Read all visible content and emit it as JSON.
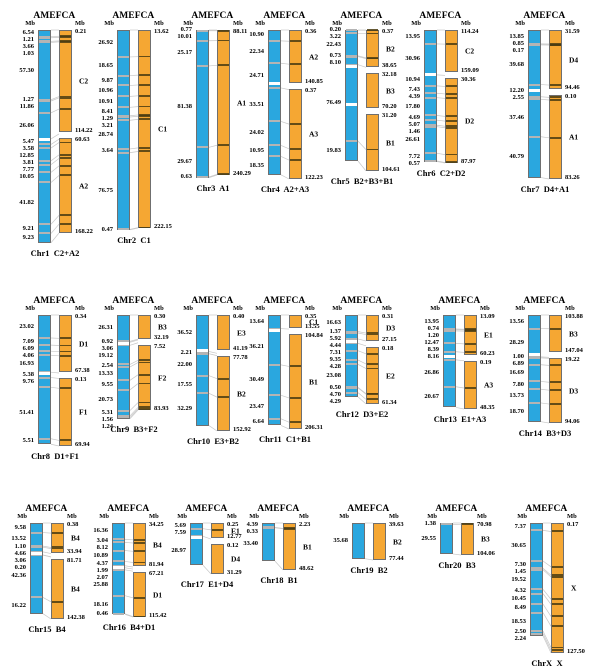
{
  "figure": {
    "unit_label": "Mb",
    "species_left": "AME",
    "species_right": "FCA",
    "colors": {
      "ame_bar": "#2AA7DF",
      "fca_bar": "#F5A733"
    }
  },
  "chromosomes": [
    {
      "name": "Chr1",
      "composition": "C2+A2",
      "ame_block_sizes_mb": [
        "6.54",
        "1.21",
        "3.66",
        "1.03",
        "57.30",
        "1.27",
        "11.86",
        "26.06",
        "5.47",
        "3.58",
        "12.85",
        "3.81",
        "7.77",
        "10.05",
        "41.82",
        "9.21",
        "9.23"
      ],
      "fca_segments": [
        {
          "name": "C2",
          "start": "0.21",
          "end": "114.22"
        },
        {
          "name": "A2",
          "start": "60.63",
          "end": "168.22"
        }
      ]
    },
    {
      "name": "Chr2",
      "composition": "C1",
      "ame_block_sizes_mb": [
        "26.92",
        "18.65",
        "9.87",
        "10.96",
        "10.91",
        "8.41",
        "1.29",
        "3.21",
        "28.74",
        "3.64",
        "76.75",
        "0.47"
      ],
      "fca_segments": [
        {
          "name": "C1",
          "start": "13.62",
          "end": "222.15"
        }
      ]
    },
    {
      "name": "Chr3",
      "composition": "A1",
      "ame_block_sizes_mb": [
        "0.77",
        "10.01",
        "25.17",
        "81.38",
        "29.67",
        "0.63"
      ],
      "fca_segments": [
        {
          "name": "A1",
          "start": "88.11",
          "end": "240.29"
        }
      ]
    },
    {
      "name": "Chr4",
      "composition": "A2+A3",
      "ame_block_sizes_mb": [
        "10.90",
        "22.34",
        "24.71",
        "33.51",
        "24.02",
        "10.95",
        "18.35"
      ],
      "fca_segments": [
        {
          "name": "A2",
          "start": "0.36",
          "end": "140.85"
        },
        {
          "name": "A3",
          "start": "0.37",
          "end": "122.23"
        }
      ]
    },
    {
      "name": "Chr5",
      "composition": "B2+B3+B1",
      "ame_block_sizes_mb": [
        "0.20",
        "3.22",
        "22.43",
        "0.73",
        "8.10",
        "76.49",
        "19.83"
      ],
      "fca_segments": [
        {
          "name": "B2",
          "start": "0.37",
          "end": "38.65"
        },
        {
          "name": "B3",
          "start": "32.18",
          "end": "70.20"
        },
        {
          "name": "B1",
          "start": "31.20",
          "end": "104.61"
        }
      ]
    },
    {
      "name": "Chr6",
      "composition": "C2+D2",
      "ame_block_sizes_mb": [
        "13.95",
        "30.96",
        "10.94",
        "7.43",
        "4.39",
        "17.80",
        "4.69",
        "5.07",
        "1.46",
        "26.61",
        "7.72",
        "0.57"
      ],
      "fca_segments": [
        {
          "name": "C2",
          "start": "114.24",
          "end": "159.09"
        },
        {
          "name": "D2",
          "start": "30.36",
          "end": "87.97"
        }
      ]
    },
    {
      "name": "Chr7",
      "composition": "D4+A1",
      "ame_block_sizes_mb": [
        "13.85",
        "0.85",
        "0.17",
        "39.68",
        "12.20",
        "2.55",
        "37.46",
        "40.79"
      ],
      "fca_segments": [
        {
          "name": "D4",
          "start": "31.59",
          "end": "94.46"
        },
        {
          "name": "A1",
          "start": "0.10",
          "end": "83.26"
        }
      ]
    },
    {
      "name": "Chr8",
      "composition": "D1+F1",
      "ame_block_sizes_mb": [
        "23.02",
        "7.09",
        "6.09",
        "4.06",
        "16.93",
        "5.38",
        "9.76",
        "51.41",
        "5.51"
      ],
      "fca_segments": [
        {
          "name": "D1",
          "start": "0.34",
          "end": "67.38"
        },
        {
          "name": "F1",
          "start": "0.13",
          "end": "69.94"
        }
      ]
    },
    {
      "name": "Chr9",
      "composition": "B3+F2",
      "ame_block_sizes_mb": [
        "26.31",
        "0.92",
        "3.06",
        "19.12",
        "2.54",
        "13.33",
        "9.55",
        "20.73",
        "5.31",
        "1.56",
        "1.24"
      ],
      "fca_segments": [
        {
          "name": "B3",
          "start": "0.30",
          "end": "32.19"
        },
        {
          "name": "F2",
          "start": "7.52",
          "end": "83.93"
        }
      ]
    },
    {
      "name": "Chr10",
      "composition": "E3+B2",
      "ame_block_sizes_mb": [
        "36.52",
        "2.21",
        "22.00",
        "17.55",
        "32.29"
      ],
      "fca_segments": [
        {
          "name": "E3",
          "start": "0.40",
          "end": "41.19"
        },
        {
          "name": "B2",
          "start": "77.78",
          "end": "152.92"
        }
      ]
    },
    {
      "name": "Chr11",
      "composition": "C1+B1",
      "ame_block_sizes_mb": [
        "13.64",
        "36.21",
        "30.49",
        "23.47",
        "6.64"
      ],
      "fca_segments": [
        {
          "name": "C1",
          "start": "0.35",
          "end": "13.55"
        },
        {
          "name": "B1",
          "start": "104.84",
          "end": "206.31"
        }
      ]
    },
    {
      "name": "Chr12",
      "composition": "D3+E2",
      "ame_block_sizes_mb": [
        "16.63",
        "1.37",
        "5.92",
        "4.44",
        "7.31",
        "9.35",
        "4.28",
        "23.08",
        "0.50",
        "4.70",
        "4.29"
      ],
      "fca_segments": [
        {
          "name": "D3",
          "start": "0.31",
          "end": "27.15"
        },
        {
          "name": "E2",
          "start": "0.18",
          "end": "61.34"
        }
      ]
    },
    {
      "name": "Chr13",
      "composition": "E1+A3",
      "ame_block_sizes_mb": [
        "13.95",
        "0.74",
        "1.20",
        "12.47",
        "8.39",
        "8.16",
        "26.86",
        "20.67"
      ],
      "fca_segments": [
        {
          "name": "E1",
          "start": "13.09",
          "end": "60.23"
        },
        {
          "name": "A3",
          "start": "0.19",
          "end": "48.35"
        }
      ]
    },
    {
      "name": "Chr14",
      "composition": "B3+D3",
      "ame_block_sizes_mb": [
        "13.56",
        "28.29",
        "1.00",
        "6.89",
        "16.69",
        "7.80",
        "13.73",
        "18.70"
      ],
      "fca_segments": [
        {
          "name": "B3",
          "start": "103.88",
          "end": "147.04"
        },
        {
          "name": "D3",
          "start": "19.22",
          "end": "94.06"
        }
      ]
    },
    {
      "name": "Chr15",
      "composition": "B4",
      "ame_block_sizes_mb": [
        "9.58",
        "13.52",
        "1.10",
        "4.66",
        "3.06",
        "0.20",
        "42.36",
        "16.22"
      ],
      "fca_segments": [
        {
          "name": "B4",
          "start": "0.38",
          "end": "33.94"
        },
        {
          "name": "B4",
          "start": "81.71",
          "end": "142.38"
        }
      ]
    },
    {
      "name": "Chr16",
      "composition": "B4+D1",
      "ame_block_sizes_mb": [
        "16.36",
        "3.04",
        "8.12",
        "10.89",
        "4.37",
        "1.99",
        "2.07",
        "25.88",
        "18.16",
        "0.46"
      ],
      "fca_segments": [
        {
          "name": "B4",
          "start": "34.25",
          "end": "81.94"
        },
        {
          "name": "D1",
          "start": "67.21",
          "end": "115.42"
        }
      ]
    },
    {
      "name": "Chr17",
      "composition": "E1+D4",
      "ame_block_sizes_mb": [
        "5.69",
        "7.59",
        "28.97"
      ],
      "fca_segments": [
        {
          "name": "E1",
          "start": "0.25",
          "end": "12.77"
        },
        {
          "name": "D4",
          "start": "0.12",
          "end": "31.29"
        }
      ]
    },
    {
      "name": "Chr18",
      "composition": "B1",
      "ame_block_sizes_mb": [
        "4.39",
        "0.33",
        "33.40"
      ],
      "fca_segments": [
        {
          "name": "B1",
          "start": "2.23",
          "end": "48.62"
        }
      ]
    },
    {
      "name": "Chr19",
      "composition": "B2",
      "ame_block_sizes_mb": [
        "35.68"
      ],
      "fca_segments": [
        {
          "name": "B2",
          "start": "39.63",
          "end": "77.44"
        }
      ]
    },
    {
      "name": "Chr20",
      "composition": "B3",
      "ame_block_sizes_mb": [
        "1.38",
        "29.55"
      ],
      "fca_segments": [
        {
          "name": "B3",
          "start": "70.98",
          "end": "104.06"
        }
      ]
    },
    {
      "name": "ChrX",
      "composition": "X",
      "ame_block_sizes_mb": [
        "7.37",
        "30.65",
        "7.30",
        "1.45",
        "19.52",
        "4.32",
        "10.45",
        "8.49",
        "18.53",
        "2.50",
        "2.24"
      ],
      "fca_segments": [
        {
          "name": "X",
          "start": "0.17",
          "end": "127.50"
        }
      ]
    }
  ]
}
